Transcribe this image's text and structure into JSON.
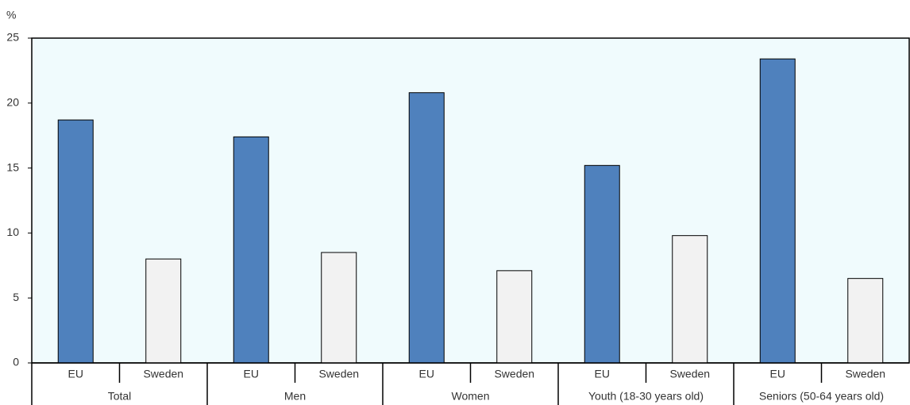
{
  "chart_data": {
    "type": "bar",
    "y_unit_label": "%",
    "groups": [
      {
        "name": "Total",
        "categories": [
          "EU",
          "Sweden"
        ],
        "values": [
          18.7,
          8.0
        ]
      },
      {
        "name": "Men",
        "categories": [
          "EU",
          "Sweden"
        ],
        "values": [
          17.4,
          8.5
        ]
      },
      {
        "name": "Women",
        "categories": [
          "EU",
          "Sweden"
        ],
        "values": [
          20.8,
          7.1
        ]
      },
      {
        "name": "Youth (18-30 years old)",
        "categories": [
          "EU",
          "Sweden"
        ],
        "values": [
          15.2,
          9.8
        ]
      },
      {
        "name": "Seniors (50-64 years old)",
        "categories": [
          "EU",
          "Sweden"
        ],
        "values": [
          23.4,
          6.5
        ]
      }
    ],
    "colors": [
      "#4f81bd",
      "#f2f2f2"
    ],
    "ylim": [
      0,
      25
    ],
    "yticks": [
      0,
      5,
      10,
      15,
      20,
      25
    ],
    "grid": false
  }
}
